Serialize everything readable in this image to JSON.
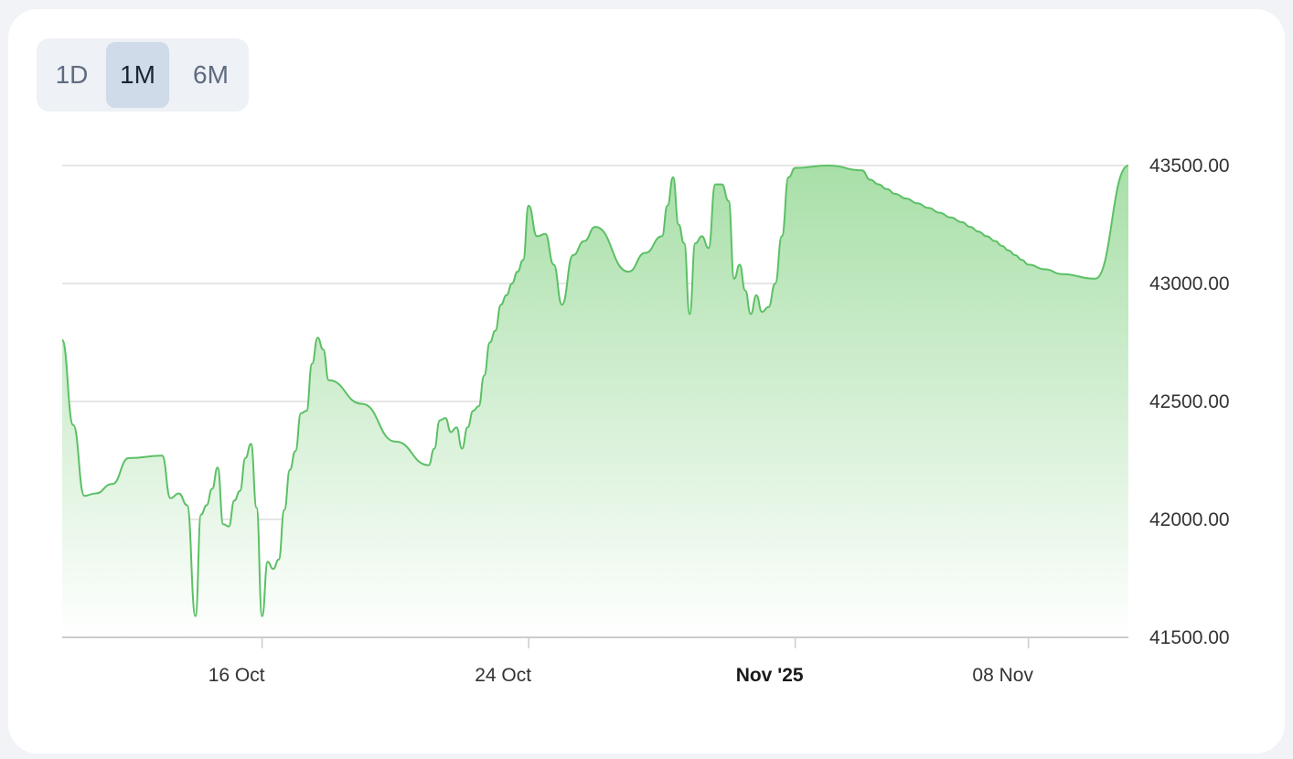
{
  "range_selector": {
    "options": [
      "1D",
      "1M",
      "6M"
    ],
    "selected": "1M"
  },
  "colors": {
    "line": "#5cc065",
    "fill_top": "#a8dfa8",
    "fill_bottom": "#ffffff",
    "grid": "#dedede",
    "axis": "#cccccc",
    "active_tab": "#cfdbe8"
  },
  "chart_data": {
    "type": "area",
    "title": "",
    "xlabel": "",
    "ylabel": "",
    "ylim": [
      41500,
      43500
    ],
    "yticks": [
      41500,
      42000,
      42500,
      43000,
      43500
    ],
    "ytick_labels": [
      "41500.00",
      "42000.00",
      "42500.00",
      "43000.00",
      "43500.00"
    ],
    "xlim": [
      "2025-10-10",
      "2025-11-11"
    ],
    "xticks": [
      {
        "date": "2025-10-16",
        "label": "16 Oct",
        "bold": false
      },
      {
        "date": "2025-10-24",
        "label": "24 Oct",
        "bold": false
      },
      {
        "date": "2025-11-01",
        "label": "Nov '25",
        "bold": true
      },
      {
        "date": "2025-11-08",
        "label": "08 Nov",
        "bold": false
      }
    ],
    "grid": true,
    "y_axis_position": "right",
    "series": [
      {
        "x": [
          "2025-10-10",
          "2025-10-10",
          "2025-10-10",
          "2025-10-11",
          "2025-10-11",
          "2025-10-12",
          "2025-10-13",
          "2025-10-13",
          "2025-10-13",
          "2025-10-13",
          "2025-10-14",
          "2025-10-14",
          "2025-10-14",
          "2025-10-14",
          "2025-10-14",
          "2025-10-14",
          "2025-10-15",
          "2025-10-15",
          "2025-10-15",
          "2025-10-15",
          "2025-10-15",
          "2025-10-15",
          "2025-10-16",
          "2025-10-16",
          "2025-10-16",
          "2025-10-16",
          "2025-10-16",
          "2025-10-16",
          "2025-10-17",
          "2025-10-17",
          "2025-10-17",
          "2025-10-17",
          "2025-10-17",
          "2025-10-17",
          "2025-10-18",
          "2025-10-19",
          "2025-10-20",
          "2025-10-21",
          "2025-10-21",
          "2025-10-21",
          "2025-10-21",
          "2025-10-21",
          "2025-10-21",
          "2025-10-22",
          "2025-10-22",
          "2025-10-22",
          "2025-10-22",
          "2025-10-22",
          "2025-10-22",
          "2025-10-23",
          "2025-10-23",
          "2025-10-23",
          "2025-10-23",
          "2025-10-23",
          "2025-10-23",
          "2025-10-24",
          "2025-10-24",
          "2025-10-24",
          "2025-10-24",
          "2025-10-25",
          "2025-10-25",
          "2025-10-25",
          "2025-10-26",
          "2025-10-27",
          "2025-10-27",
          "2025-10-28",
          "2025-10-28",
          "2025-10-28",
          "2025-10-28",
          "2025-10-28",
          "2025-10-28",
          "2025-10-29",
          "2025-10-29",
          "2025-10-29",
          "2025-10-29",
          "2025-10-29",
          "2025-10-30",
          "2025-10-30",
          "2025-10-30",
          "2025-10-30",
          "2025-10-30",
          "2025-10-30",
          "2025-10-31",
          "2025-10-31",
          "2025-10-31",
          "2025-10-31",
          "2025-10-31",
          "2025-11-01",
          "2025-11-02",
          "2025-11-03",
          "2025-11-03",
          "2025-11-03",
          "2025-11-03",
          "2025-11-04",
          "2025-11-04",
          "2025-11-04",
          "2025-11-05",
          "2025-11-05",
          "2025-11-05",
          "2025-11-06",
          "2025-11-06",
          "2025-11-06",
          "2025-11-06",
          "2025-11-07",
          "2025-11-07",
          "2025-11-07",
          "2025-11-07",
          "2025-11-07",
          "2025-11-08",
          "2025-11-08",
          "2025-11-09",
          "2025-11-10",
          "2025-11-11"
        ],
        "y": [
          42760,
          42400,
          42100,
          42110,
          42150,
          42260,
          42270,
          42090,
          42110,
          42060,
          41590,
          42020,
          42060,
          42130,
          42220,
          41980,
          41970,
          42080,
          42120,
          42260,
          42320,
          42050,
          41590,
          41820,
          41790,
          41830,
          42040,
          42210,
          42290,
          42450,
          42460,
          42660,
          42770,
          42720,
          42590,
          42490,
          42330,
          42230,
          42300,
          42420,
          42430,
          42370,
          42390,
          42300,
          42390,
          42460,
          42480,
          42610,
          42750,
          42800,
          42910,
          42950,
          43000,
          43050,
          43100,
          43330,
          43200,
          43210,
          43080,
          42910,
          43120,
          43180,
          43240,
          43050,
          43130,
          43200,
          43330,
          43450,
          43250,
          43170,
          42870,
          43170,
          43200,
          43150,
          43420,
          43420,
          43350,
          43020,
          43080,
          42970,
          42870,
          42950,
          42880,
          42900,
          43000,
          43200,
          43450,
          43490,
          43500,
          43480,
          43440,
          43420,
          43400,
          43380,
          43360,
          43340,
          43320,
          43300,
          43280,
          43260,
          43240,
          43220,
          43200,
          43180,
          43160,
          43140,
          43120,
          43100,
          43080,
          43060,
          43040,
          43020,
          43500
        ]
      }
    ]
  }
}
